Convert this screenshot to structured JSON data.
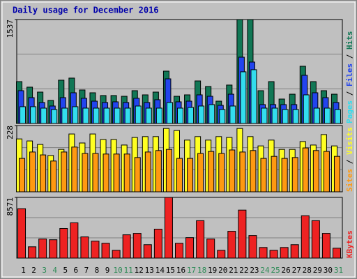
{
  "chart_data": [
    {
      "type": "bar",
      "title": "Daily usage for December 2016",
      "ylim": [
        0,
        1537
      ],
      "yticks": [
        1537
      ],
      "grid_divisions": 3,
      "legend_separator": " / ",
      "series": [
        {
          "name": "Pages",
          "color": "#33ddee",
          "values": [
            248,
            248,
            227,
            206,
            227,
            248,
            227,
            227,
            227,
            227,
            227,
            258,
            227,
            227,
            310,
            227,
            237,
            258,
            279,
            206,
            258,
            764,
            795,
            227,
            227,
            206,
            206,
            423,
            227,
            227,
            206
          ]
        },
        {
          "name": "Files",
          "color": "#2244ee",
          "values": [
            485,
            382,
            310,
            258,
            382,
            454,
            372,
            330,
            310,
            320,
            310,
            372,
            310,
            351,
            660,
            320,
            330,
            423,
            402,
            268,
            433,
            980,
            908,
            279,
            279,
            279,
            279,
            712,
            454,
            382,
            310
          ]
        },
        {
          "name": "Hits",
          "color": "#117755",
          "values": [
            619,
            537,
            464,
            341,
            640,
            671,
            495,
            454,
            413,
            413,
            402,
            485,
            423,
            464,
            774,
            402,
            423,
            629,
            547,
            330,
            568,
            1537,
            1537,
            485,
            619,
            361,
            433,
            846,
            619,
            485,
            433
          ]
        }
      ]
    },
    {
      "type": "bar",
      "ylim": [
        0,
        228
      ],
      "yticks": [
        228
      ],
      "grid_divisions": 3,
      "legend_separator": " / ",
      "series": [
        {
          "name": "Sites",
          "color": "#ff9911",
          "values": [
            115,
            137,
            127,
            106,
            137,
            154,
            132,
            132,
            130,
            130,
            130,
            118,
            137,
            142,
            146,
            115,
            115,
            132,
            139,
            132,
            144,
            137,
            142,
            115,
            122,
            115,
            118,
            151,
            142,
            139,
            122
          ]
        },
        {
          "name": "Visits",
          "color": "#ffff22",
          "values": [
            182,
            175,
            163,
            125,
            146,
            199,
            168,
            199,
            180,
            180,
            161,
            187,
            190,
            190,
            218,
            211,
            178,
            190,
            178,
            190,
            187,
            218,
            190,
            158,
            178,
            146,
            146,
            173,
            161,
            197,
            158
          ]
        }
      ]
    },
    {
      "type": "bar",
      "ylim": [
        0,
        8571
      ],
      "yticks": [
        8571
      ],
      "grid_divisions": 3,
      "categories": [
        "1",
        "2",
        "3",
        "4",
        "5",
        "6",
        "7",
        "8",
        "9",
        "10",
        "11",
        "12",
        "13",
        "14",
        "15",
        "16",
        "17",
        "18",
        "19",
        "20",
        "21",
        "22",
        "23",
        "24",
        "25",
        "26",
        "27",
        "28",
        "29",
        "30",
        "31"
      ],
      "category_colors": [
        "#000000",
        "#000000",
        "#2e8b57",
        "#2e8b57",
        "#000000",
        "#000000",
        "#000000",
        "#000000",
        "#000000",
        "#2e8b57",
        "#2e8b57",
        "#000000",
        "#000000",
        "#000000",
        "#000000",
        "#000000",
        "#2e8b57",
        "#2e8b57",
        "#000000",
        "#000000",
        "#000000",
        "#000000",
        "#000000",
        "#2e8b57",
        "#2e8b57",
        "#000000",
        "#000000",
        "#000000",
        "#000000",
        "#000000",
        "#2e8b57"
      ],
      "series": [
        {
          "name": "KBytes",
          "color": "#ee2222",
          "values": [
            6977,
            1595,
            2691,
            2591,
            4186,
            4983,
            2990,
            2392,
            2093,
            1096,
            3289,
            3488,
            1894,
            4087,
            8571,
            2093,
            2890,
            5283,
            2691,
            1096,
            3787,
            6778,
            3189,
            1495,
            1096,
            1495,
            1894,
            5980,
            5283,
            3488,
            1395
          ]
        }
      ]
    }
  ]
}
